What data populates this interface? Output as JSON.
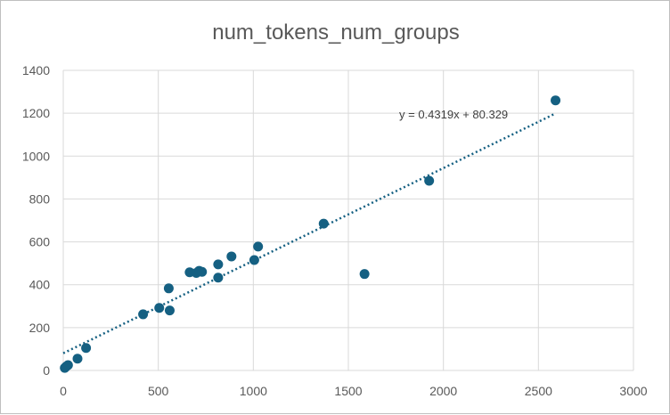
{
  "colors": {
    "marker": "#156082",
    "trendline": "#156082",
    "grid": "#d9d9d9",
    "text": "#595959"
  },
  "chart_data": {
    "type": "scatter",
    "title": "num_tokens_num_groups",
    "xlabel": "",
    "ylabel": "",
    "xlim": [
      0,
      3000
    ],
    "ylim": [
      0,
      1400
    ],
    "x_ticks": [
      0,
      500,
      1000,
      1500,
      2000,
      2500,
      3000
    ],
    "y_ticks": [
      0,
      200,
      400,
      600,
      800,
      1000,
      1200,
      1400
    ],
    "grid": true,
    "legend": "none",
    "series": [
      {
        "x": [
          8,
          15,
          25,
          75,
          120,
          420,
          505,
          555,
          560,
          665,
          700,
          715,
          730,
          815,
          815,
          885,
          1005,
          1025,
          1370,
          1585,
          1925,
          2590
        ],
        "y": [
          12,
          18,
          25,
          55,
          105,
          262,
          292,
          383,
          280,
          458,
          455,
          465,
          460,
          495,
          433,
          532,
          515,
          578,
          685,
          450,
          885,
          1260
        ]
      }
    ],
    "trendline": {
      "type": "linear",
      "slope": 0.4319,
      "intercept": 80.329,
      "x_range": [
        0,
        2590
      ],
      "equation_label": "y = 0.4319x + 80.329"
    }
  }
}
